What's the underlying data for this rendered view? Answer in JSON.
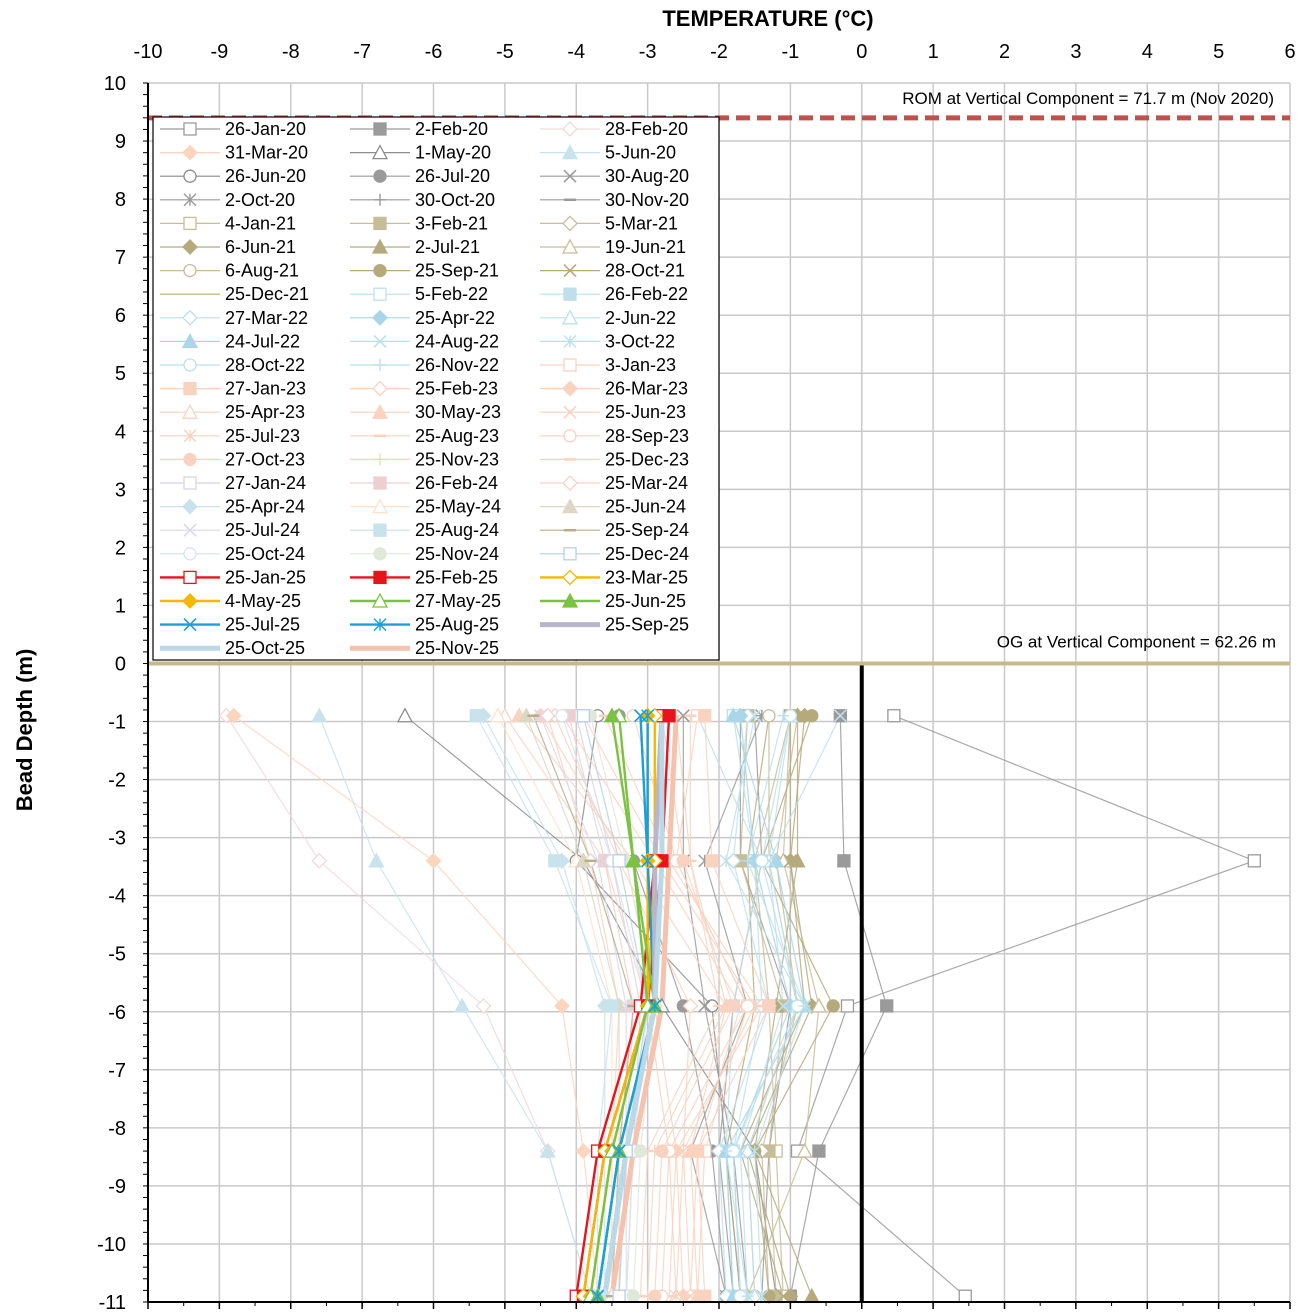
{
  "chart_data": {
    "type": "line",
    "title": "",
    "xlabel": "TEMPERATURE (°C)",
    "ylabel": "Bead Depth (m)",
    "xlim": [
      -10,
      6
    ],
    "ylim": [
      -11,
      10
    ],
    "x_ticks": [
      "-10",
      "-9",
      "-8",
      "-7",
      "-6",
      "-5",
      "-4",
      "-3",
      "-2",
      "-1",
      "0",
      "1",
      "2",
      "3",
      "4",
      "5",
      "6"
    ],
    "y_ticks": [
      "10",
      "9",
      "8",
      "7",
      "6",
      "5",
      "4",
      "3",
      "2",
      "1",
      "0",
      "-1",
      "-2",
      "-3",
      "-4",
      "-5",
      "-6",
      "-7",
      "-8",
      "-9",
      "-10",
      "-11"
    ],
    "grid": true,
    "legend_position": "top-left",
    "depths": [
      -0.9,
      -3.4,
      -5.9,
      -8.4,
      -10.9
    ],
    "annotations": {
      "rom_label": "ROM at Vertical Component = 71.7 m (Nov 2020)",
      "rom_depth": 9.4,
      "og_label": "OG at Vertical Component = 62.26 m",
      "og_depth": 0
    },
    "series": [
      {
        "name": "26-Jan-20",
        "color": "#9a9a9a",
        "marker": "square-open",
        "values": [
          0.45,
          5.5,
          -0.2,
          -0.9,
          1.45
        ]
      },
      {
        "name": "2-Feb-20",
        "color": "#9a9a9a",
        "marker": "square",
        "values": [
          -0.3,
          -0.25,
          0.35,
          -0.6,
          -1.0
        ]
      },
      {
        "name": "28-Feb-20",
        "color": "#f0d9dc",
        "marker": "diamond-open",
        "values": [
          -8.9,
          -7.6,
          -5.3,
          -4.4,
          -3.8
        ]
      },
      {
        "name": "31-Mar-20",
        "color": "#fcd5bf",
        "marker": "diamond",
        "values": [
          -8.8,
          -6.0,
          -4.2,
          -3.9,
          -3.7
        ]
      },
      {
        "name": "1-May-20",
        "color": "#8c8c8c",
        "marker": "triangle-open",
        "values": [
          -6.4,
          -3.9,
          -2.8,
          -1.5,
          -1.2
        ]
      },
      {
        "name": "5-Jun-20",
        "color": "#c8e3ec",
        "marker": "triangle",
        "values": [
          -7.6,
          -6.8,
          -5.6,
          -4.4,
          -3.8
        ]
      },
      {
        "name": "26-Jun-20",
        "color": "#8c8c8c",
        "marker": "circle-open",
        "values": [
          -3.7,
          -4.0,
          -2.1,
          -1.9,
          -1.7
        ]
      },
      {
        "name": "26-Jul-20",
        "color": "#9a9a9a",
        "marker": "circle",
        "values": [
          -3.4,
          -3.2,
          -2.5,
          -2.1,
          -1.9
        ]
      },
      {
        "name": "30-Aug-20",
        "color": "#9a9a9a",
        "marker": "x",
        "values": [
          -2.5,
          -2.5,
          -2.2,
          -1.8,
          -1.6
        ]
      },
      {
        "name": "2-Oct-20",
        "color": "#9a9a9a",
        "marker": "star",
        "values": [
          -1.4,
          -2.2,
          -1.6,
          -2.4,
          -1.9
        ]
      },
      {
        "name": "30-Oct-20",
        "color": "#9a9a9a",
        "marker": "plus",
        "values": [
          -1.5,
          -1.4,
          -1.8,
          -2.0,
          -1.8
        ]
      },
      {
        "name": "30-Nov-20",
        "color": "#9a9a9a",
        "marker": "dash",
        "values": [
          -1.7,
          -1.7,
          -1.0,
          -1.3,
          -1.4
        ]
      },
      {
        "name": "4-Jan-21",
        "color": "#c7bd98",
        "marker": "square-open",
        "values": [
          -1.0,
          -1.5,
          -1.3,
          -1.2,
          -1.1
        ]
      },
      {
        "name": "3-Feb-21",
        "color": "#c7bd98",
        "marker": "square",
        "values": [
          -1.6,
          -1.7,
          -1.1,
          -1.3,
          -1.2
        ]
      },
      {
        "name": "5-Mar-21",
        "color": "#c7bd98",
        "marker": "diamond-open",
        "values": [
          -0.9,
          -1.2,
          -0.9,
          -1.4,
          -1.3
        ]
      },
      {
        "name": "6-Jun-21",
        "color": "#b5aa7c",
        "marker": "diamond",
        "values": [
          -0.8,
          -1.0,
          -0.7,
          -1.6,
          -1.0
        ]
      },
      {
        "name": "2-Jul-21",
        "color": "#b5aa7c",
        "marker": "triangle",
        "values": [
          -0.9,
          -0.9,
          -1.2,
          -1.5,
          -0.7
        ]
      },
      {
        "name": "19-Jun-21",
        "color": "#c7bd98",
        "marker": "triangle-open",
        "values": [
          -1.0,
          -1.1,
          -0.6,
          -0.8,
          -1.6
        ]
      },
      {
        "name": "6-Aug-21",
        "color": "#c7bd98",
        "marker": "circle-open",
        "values": [
          -1.3,
          -1.3,
          -0.9,
          -1.6,
          -1.5
        ]
      },
      {
        "name": "25-Sep-21",
        "color": "#b5aa7c",
        "marker": "circle",
        "values": [
          -0.7,
          -1.4,
          -0.4,
          -1.5,
          -1.3
        ]
      },
      {
        "name": "28-Oct-21",
        "color": "#b5aa7c",
        "marker": "x",
        "values": [
          -1.0,
          -1.0,
          -0.8,
          -1.7,
          -1.1
        ]
      },
      {
        "name": "25-Dec-21",
        "color": "#b5aa7c",
        "marker": "none",
        "values": [
          -1.3,
          -1.6,
          -1.5,
          -1.9,
          -1.7
        ]
      },
      {
        "name": "5-Feb-22",
        "color": "#bde0ec",
        "marker": "square-open",
        "values": [
          -1.8,
          -1.5,
          -1.4,
          -1.8,
          -1.7
        ]
      },
      {
        "name": "26-Feb-22",
        "color": "#bde0ec",
        "marker": "square",
        "values": [
          -2.3,
          -1.4,
          -1.8,
          -1.9,
          -1.8
        ]
      },
      {
        "name": "27-Mar-22",
        "color": "#bde0ec",
        "marker": "diamond-open",
        "values": [
          -1.6,
          -1.8,
          -1.3,
          -2.0,
          -1.9
        ]
      },
      {
        "name": "25-Apr-22",
        "color": "#a9d6e8",
        "marker": "diamond",
        "values": [
          -1.7,
          -1.5,
          -1.0,
          -1.8,
          -1.7
        ]
      },
      {
        "name": "2-Jun-22",
        "color": "#bde0ec",
        "marker": "triangle-open",
        "values": [
          -1.0,
          -1.3,
          -0.9,
          -1.6,
          -1.5
        ]
      },
      {
        "name": "24-Jul-22",
        "color": "#a9d6e8",
        "marker": "triangle",
        "values": [
          -1.8,
          -1.2,
          -0.8,
          -1.9,
          -1.8
        ]
      },
      {
        "name": "24-Aug-22",
        "color": "#bde0ec",
        "marker": "x",
        "values": [
          -0.3,
          -1.3,
          -1.1,
          -1.7,
          -1.6
        ]
      },
      {
        "name": "3-Oct-22",
        "color": "#bde0ec",
        "marker": "star",
        "values": [
          -1.5,
          -1.9,
          -0.8,
          -1.5,
          -1.4
        ]
      },
      {
        "name": "28-Oct-22",
        "color": "#bde0ec",
        "marker": "circle-open",
        "values": [
          -1.0,
          -1.4,
          -0.9,
          -1.8,
          -1.7
        ]
      },
      {
        "name": "26-Nov-22",
        "color": "#bde0ec",
        "marker": "plus",
        "values": [
          -1.1,
          -1.6,
          -0.8,
          -1.9,
          -1.6
        ]
      },
      {
        "name": "3-Jan-23",
        "color": "#f9d3c0",
        "marker": "square-open",
        "values": [
          -2.3,
          -2.6,
          -1.6,
          -2.2,
          -2.3
        ]
      },
      {
        "name": "27-Jan-23",
        "color": "#f9d3c0",
        "marker": "square",
        "values": [
          -2.2,
          -2.1,
          -1.3,
          -2.3,
          -2.2
        ]
      },
      {
        "name": "25-Feb-23",
        "color": "#f9d3c0",
        "marker": "diamond-open",
        "values": [
          -4.3,
          -3.4,
          -2.4,
          -2.5,
          -2.4
        ]
      },
      {
        "name": "26-Mar-23",
        "color": "#f9d3c0",
        "marker": "diamond",
        "values": [
          -4.5,
          -3.3,
          -2.9,
          -2.6,
          -2.5
        ]
      },
      {
        "name": "25-Apr-23",
        "color": "#f9d3c0",
        "marker": "triangle-open",
        "values": [
          -5.0,
          -3.6,
          -3.0,
          -2.7,
          -2.6
        ]
      },
      {
        "name": "30-May-23",
        "color": "#f9d3c0",
        "marker": "triangle",
        "values": [
          -4.8,
          -3.2,
          -1.9,
          -2.4,
          -2.3
        ]
      },
      {
        "name": "25-Jun-23",
        "color": "#f9d3c0",
        "marker": "x",
        "values": [
          -4.2,
          -2.9,
          -1.7,
          -2.3,
          -2.4
        ]
      },
      {
        "name": "25-Jul-23",
        "color": "#f9d3c0",
        "marker": "star",
        "values": [
          -3.9,
          -2.8,
          -1.5,
          -2.5,
          -2.6
        ]
      },
      {
        "name": "25-Aug-23",
        "color": "#f9d3c0",
        "marker": "dash",
        "values": [
          -3.6,
          -2.7,
          -1.4,
          -2.6,
          -2.7
        ]
      },
      {
        "name": "28-Sep-23",
        "color": "#f9d3c0",
        "marker": "circle-open",
        "values": [
          -3.2,
          -2.6,
          -1.6,
          -2.7,
          -2.8
        ]
      },
      {
        "name": "27-Oct-23",
        "color": "#f9d3c0",
        "marker": "circle",
        "values": [
          -2.8,
          -2.5,
          -1.8,
          -2.8,
          -2.9
        ]
      },
      {
        "name": "25-Nov-23",
        "color": "#f9d3c0",
        "marker": "plus",
        "values": [
          -2.6,
          -2.4,
          -1.9,
          -2.9,
          -3.0
        ]
      },
      {
        "name": "25-Dec-23",
        "color": "#f9d3c0",
        "marker": "dash",
        "values": [
          -2.4,
          -2.4,
          -2.0,
          -3.0,
          -3.1
        ]
      },
      {
        "name": "27-Jan-24",
        "color": "#d8d2e4",
        "marker": "square-open",
        "values": [
          -4.0,
          -3.5,
          -3.1,
          -3.2,
          -3.3
        ]
      },
      {
        "name": "26-Feb-24",
        "color": "#eecfcf",
        "marker": "square",
        "values": [
          -4.1,
          -3.6,
          -3.2,
          -3.3,
          -3.4
        ]
      },
      {
        "name": "25-Mar-24",
        "color": "#f9d3c0",
        "marker": "diamond-open",
        "values": [
          -4.4,
          -3.8,
          -3.4,
          -3.5,
          -3.5
        ]
      },
      {
        "name": "25-Apr-24",
        "color": "#c8e3ec",
        "marker": "diamond",
        "values": [
          -5.3,
          -4.2,
          -3.6,
          -3.6,
          -3.6
        ]
      },
      {
        "name": "25-May-24",
        "color": "#fce2cc",
        "marker": "triangle-open",
        "values": [
          -5.1,
          -4.0,
          -3.5,
          -3.5,
          -3.5
        ]
      },
      {
        "name": "25-Jun-24",
        "color": "#ddd8c4",
        "marker": "triangle",
        "values": [
          -4.7,
          -3.9,
          -3.4,
          -3.4,
          -3.4
        ]
      },
      {
        "name": "25-Jul-24",
        "color": "#dcd8ea",
        "marker": "x",
        "values": [
          -4.5,
          -3.7,
          -3.3,
          -3.3,
          -3.3
        ]
      },
      {
        "name": "25-Aug-24",
        "color": "#c8e3ec",
        "marker": "square",
        "values": [
          -5.4,
          -4.3,
          -3.5,
          -3.7,
          -3.7
        ]
      },
      {
        "name": "25-Sep-24",
        "color": "#b9ad8c",
        "marker": "dash",
        "values": [
          -4.6,
          -3.8,
          -3.2,
          -3.4,
          -3.5
        ]
      },
      {
        "name": "25-Oct-24",
        "color": "#d6e3f0",
        "marker": "circle-open",
        "values": [
          -4.2,
          -3.5,
          -3.0,
          -3.2,
          -3.3
        ]
      },
      {
        "name": "25-Nov-24",
        "color": "#e0e8d8",
        "marker": "circle",
        "values": [
          -3.8,
          -3.3,
          -2.9,
          -3.1,
          -3.2
        ]
      },
      {
        "name": "25-Dec-24",
        "color": "#b8cfe8",
        "marker": "square-open",
        "values": [
          -3.9,
          -3.4,
          -3.0,
          -3.3,
          -3.4
        ]
      },
      {
        "name": "25-Jan-25",
        "color": "#e8141c",
        "marker": "square-open",
        "values": [
          -2.8,
          -2.9,
          -3.1,
          -3.7,
          -4.0
        ]
      },
      {
        "name": "25-Feb-25",
        "color": "#e8141c",
        "marker": "square",
        "values": [
          -2.7,
          -2.8,
          -3.0,
          -3.6,
          -3.9
        ]
      },
      {
        "name": "23-Mar-25",
        "color": "#f5b800",
        "marker": "diamond-open",
        "values": [
          -2.9,
          -2.9,
          -3.0,
          -3.6,
          -3.9
        ]
      },
      {
        "name": "4-May-25",
        "color": "#f5b800",
        "marker": "diamond",
        "values": [
          -3.0,
          -3.0,
          -3.0,
          -3.5,
          -3.8
        ]
      },
      {
        "name": "27-May-25",
        "color": "#7cc242",
        "marker": "triangle-open",
        "values": [
          -3.4,
          -3.2,
          -3.0,
          -3.5,
          -3.8
        ]
      },
      {
        "name": "25-Jun-25",
        "color": "#7cc242",
        "marker": "triangle",
        "values": [
          -3.5,
          -3.2,
          -2.9,
          -3.4,
          -3.7
        ]
      },
      {
        "name": "25-Jul-25",
        "color": "#1aa0d8",
        "marker": "x",
        "values": [
          -3.1,
          -3.0,
          -2.9,
          -3.4,
          -3.7
        ]
      },
      {
        "name": "25-Aug-25",
        "color": "#1aa0d8",
        "marker": "star",
        "values": [
          -3.0,
          -3.0,
          -2.9,
          -3.4,
          -3.7
        ]
      },
      {
        "name": "25-Sep-25",
        "color": "#b9b6cc",
        "marker": "none",
        "values": [
          -2.8,
          -2.9,
          -2.9,
          -3.3,
          -3.6
        ]
      },
      {
        "name": "25-Oct-25",
        "color": "#bad8e6",
        "marker": "none",
        "values": [
          -2.8,
          -2.8,
          -2.9,
          -3.3,
          -3.6
        ]
      },
      {
        "name": "25-Nov-25",
        "color": "#f6c1ad",
        "marker": "none",
        "values": [
          -2.6,
          -2.7,
          -2.8,
          -3.2,
          -3.5
        ]
      }
    ]
  }
}
